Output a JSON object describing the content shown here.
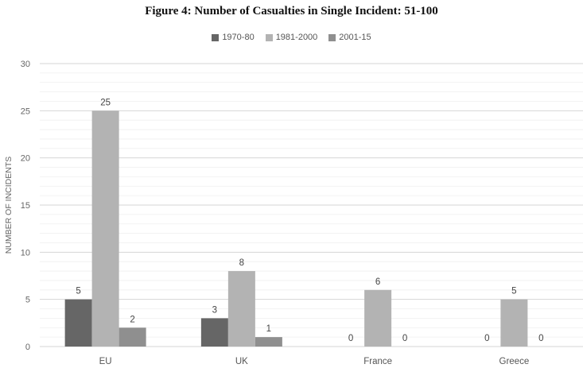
{
  "chart_data": {
    "type": "bar",
    "title": "Figure 4: Number of Casualties in Single Incident: 51-100",
    "ylabel": "NUMBER OF INCIDENTS",
    "xlabel": "",
    "categories": [
      "EU",
      "UK",
      "France",
      "Greece"
    ],
    "series": [
      {
        "name": "1970-80",
        "values": [
          5,
          3,
          0,
          0
        ],
        "color": "#666666"
      },
      {
        "name": "1981-2000",
        "values": [
          25,
          8,
          6,
          5
        ],
        "color": "#b3b3b3"
      },
      {
        "name": "2001-15",
        "values": [
          2,
          1,
          0,
          0
        ],
        "color": "#8f8f8f"
      }
    ],
    "ylim": [
      0,
      30
    ],
    "yticks": [
      0,
      5,
      10,
      15,
      20,
      25,
      30
    ],
    "grid": true,
    "legend_position": "top"
  }
}
